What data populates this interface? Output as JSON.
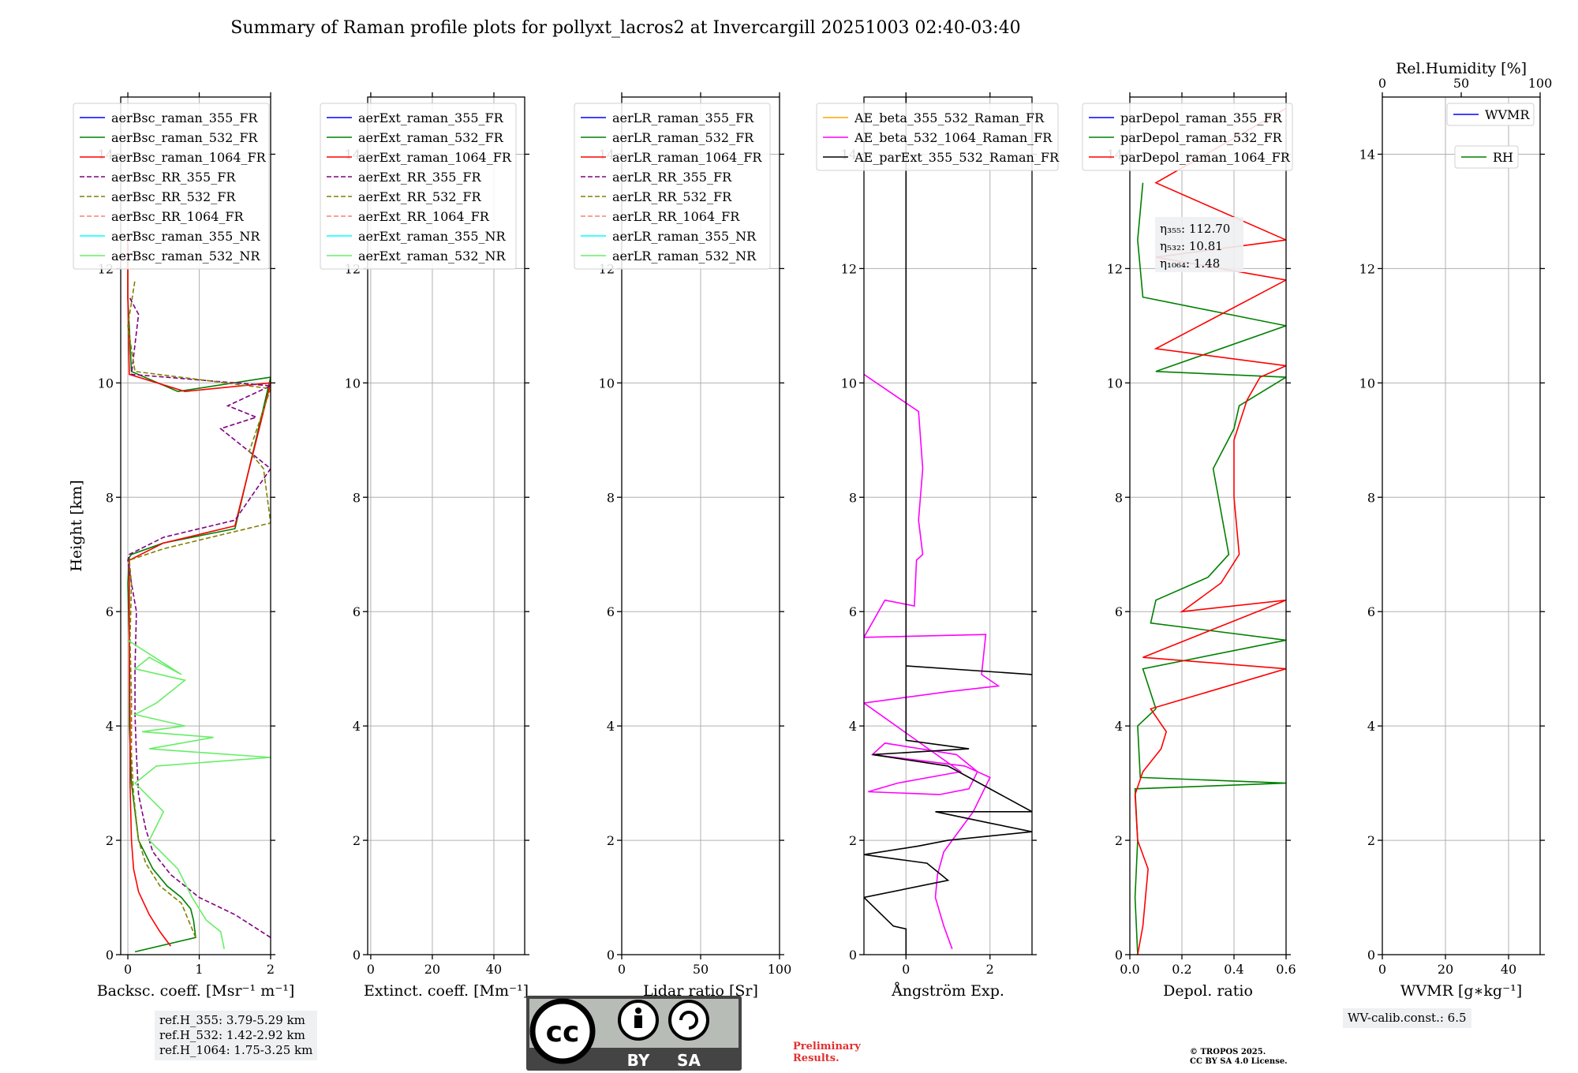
{
  "title": "Summary of Raman profile plots for pollyxt_lacros2 at Invercargill 20251003 02:40-03:40",
  "colors": {
    "blue": "#0000ff",
    "green": "#008000",
    "red": "#ff0000",
    "purple": "#800080",
    "olive": "#808000",
    "salmon": "#fa8072",
    "cyan": "#00ffff",
    "lightgreen": "#66ee66",
    "orange": "#ffa500",
    "magenta": "#ff00ff",
    "black": "#000000"
  },
  "footer": {
    "ref_lines": [
      "ref.H_355: 3.79-5.29 km",
      "ref.H_532: 1.42-2.92 km",
      "ref.H_1064: 1.75-3.25 km"
    ],
    "license_by": "BY",
    "license_sa": "SA",
    "license_cc": "cc",
    "preliminary": [
      "Preliminary",
      "Results."
    ],
    "copyright": [
      "© TROPOS 2025.",
      "CC BY SA 4.0 License."
    ],
    "wv_calib": "WV-calib.const.: 6.5"
  },
  "chart_data": [
    {
      "type": "line",
      "id": "backscatter",
      "xlabel": "Backsc. coeff. [Msr⁻¹ m⁻¹]",
      "ylabel": "Height [km]",
      "xlim": [
        -0.1,
        2.0
      ],
      "ylim": [
        0,
        15
      ],
      "xticks": [
        0,
        1,
        2
      ],
      "yticks": [
        0,
        2,
        4,
        6,
        8,
        10,
        12,
        14
      ],
      "legend": "top-left",
      "series": [
        {
          "name": "aerBsc_raman_355_FR",
          "color": "blue",
          "dash": false,
          "x": [],
          "y": []
        },
        {
          "name": "aerBsc_raman_532_FR",
          "color": "green",
          "dash": false,
          "x": [
            0.1,
            0.95,
            0.92,
            0.88,
            0.75,
            0.55,
            0.35,
            0.15,
            0.05,
            0.02,
            0.02,
            0.0,
            0.02,
            0.05,
            0.5,
            1.5,
            2.0,
            0.7,
            0.05,
            0.0,
            0.0
          ],
          "y": [
            0.05,
            0.3,
            0.6,
            0.8,
            1.0,
            1.2,
            1.5,
            2.0,
            3.0,
            4.0,
            5.5,
            6.5,
            6.95,
            7.0,
            7.2,
            7.45,
            10.1,
            9.85,
            10.2,
            11.5,
            12.5
          ]
        },
        {
          "name": "aerBsc_raman_1064_FR",
          "color": "red",
          "dash": false,
          "x": [
            0.6,
            0.45,
            0.3,
            0.15,
            0.08,
            0.05,
            0.03,
            0.03,
            0.02,
            0.02,
            0.5,
            1.5,
            2.0,
            0.8,
            0.02,
            0.0,
            0.0
          ],
          "y": [
            0.15,
            0.4,
            0.7,
            1.1,
            1.5,
            2.0,
            3.0,
            4.0,
            5.5,
            6.9,
            7.2,
            7.5,
            10.0,
            9.85,
            10.15,
            11.5,
            12.5
          ]
        },
        {
          "name": "aerBsc_RR_355_FR",
          "color": "purple",
          "dash": true,
          "x": [
            2.0,
            1.5,
            1.0,
            0.6,
            0.35,
            0.25,
            0.15,
            0.12,
            0.1,
            0.1,
            0.12,
            0.05,
            0.0,
            0.02,
            0.5,
            1.5,
            2.0,
            1.3,
            1.8,
            1.4,
            2.0,
            0.05,
            0.15,
            0.02
          ],
          "y": [
            0.3,
            0.7,
            1.0,
            1.4,
            1.8,
            2.2,
            2.8,
            3.5,
            4.2,
            5.0,
            6.0,
            6.5,
            6.9,
            7.0,
            7.3,
            7.6,
            8.5,
            9.2,
            9.4,
            9.6,
            9.95,
            10.15,
            11.2,
            11.5
          ],
          "ylim_clip": true
        },
        {
          "name": "aerBsc_RR_532_FR",
          "color": "olive",
          "dash": true,
          "x": [
            0.95,
            0.75,
            0.45,
            0.25,
            0.15,
            0.08,
            0.05,
            0.05,
            0.03,
            0.05,
            0.02,
            0.5,
            1.5,
            2.0,
            1.9,
            1.7,
            2.0,
            0.1,
            0.0,
            0.1
          ],
          "y": [
            0.3,
            0.9,
            1.2,
            1.6,
            2.0,
            2.8,
            3.5,
            4.5,
            5.5,
            6.5,
            6.9,
            7.1,
            7.4,
            7.55,
            8.5,
            8.8,
            9.9,
            10.2,
            11.0,
            11.8
          ]
        },
        {
          "name": "aerBsc_RR_1064_FR",
          "color": "salmon",
          "dash": true,
          "x": [],
          "y": []
        },
        {
          "name": "aerBsc_raman_355_NR",
          "color": "cyan",
          "dash": false,
          "x": [],
          "y": []
        },
        {
          "name": "aerBsc_raman_532_NR",
          "color": "lightgreen",
          "dash": false,
          "x": [
            1.35,
            1.3,
            1.1,
            0.9,
            0.7,
            0.3,
            0.5,
            0.1,
            0.4,
            2.0,
            0.3,
            1.2,
            0.2,
            0.8,
            0.1,
            0.4,
            0.8,
            0.1,
            0.3,
            0.75,
            0.0
          ],
          "y": [
            0.1,
            0.4,
            0.6,
            1.0,
            1.5,
            2.0,
            2.5,
            3.0,
            3.3,
            3.45,
            3.6,
            3.8,
            3.9,
            4.0,
            4.2,
            4.4,
            4.8,
            5.0,
            5.2,
            4.9,
            5.5
          ]
        }
      ]
    },
    {
      "type": "line",
      "id": "extinction",
      "xlabel": "Extinct. coeff. [Mm⁻¹]",
      "xlim": [
        -1,
        50
      ],
      "ylim": [
        0,
        15
      ],
      "xticks": [
        0,
        20,
        40
      ],
      "yticks": [
        0,
        2,
        4,
        6,
        8,
        10,
        12,
        14
      ],
      "legend": "top-left",
      "series": [
        {
          "name": "aerExt_raman_355_FR",
          "color": "blue",
          "dash": false,
          "x": [],
          "y": []
        },
        {
          "name": "aerExt_raman_532_FR",
          "color": "green",
          "dash": false,
          "x": [],
          "y": []
        },
        {
          "name": "aerExt_raman_1064_FR",
          "color": "red",
          "dash": false,
          "x": [],
          "y": []
        },
        {
          "name": "aerExt_RR_355_FR",
          "color": "purple",
          "dash": true,
          "x": [],
          "y": []
        },
        {
          "name": "aerExt_RR_532_FR",
          "color": "olive",
          "dash": true,
          "x": [],
          "y": []
        },
        {
          "name": "aerExt_RR_1064_FR",
          "color": "salmon",
          "dash": true,
          "x": [],
          "y": []
        },
        {
          "name": "aerExt_raman_355_NR",
          "color": "cyan",
          "dash": false,
          "x": [],
          "y": []
        },
        {
          "name": "aerExt_raman_532_NR",
          "color": "lightgreen",
          "dash": false,
          "x": [],
          "y": []
        }
      ]
    },
    {
      "type": "line",
      "id": "lidar_ratio",
      "xlabel": "Lidar ratio [Sr]",
      "xlim": [
        0,
        100
      ],
      "ylim": [
        0,
        15
      ],
      "xticks": [
        0,
        50,
        100
      ],
      "yticks": [
        0,
        2,
        4,
        6,
        8,
        10,
        12,
        14
      ],
      "legend": "top-left",
      "series": [
        {
          "name": "aerLR_raman_355_FR",
          "color": "blue",
          "dash": false,
          "x": [],
          "y": []
        },
        {
          "name": "aerLR_raman_532_FR",
          "color": "green",
          "dash": false,
          "x": [],
          "y": []
        },
        {
          "name": "aerLR_raman_1064_FR",
          "color": "red",
          "dash": false,
          "x": [],
          "y": []
        },
        {
          "name": "aerLR_RR_355_FR",
          "color": "purple",
          "dash": true,
          "x": [],
          "y": []
        },
        {
          "name": "aerLR_RR_532_FR",
          "color": "olive",
          "dash": true,
          "x": [],
          "y": []
        },
        {
          "name": "aerLR_RR_1064_FR",
          "color": "salmon",
          "dash": true,
          "x": [],
          "y": []
        },
        {
          "name": "aerLR_raman_355_NR",
          "color": "cyan",
          "dash": false,
          "x": [],
          "y": []
        },
        {
          "name": "aerLR_raman_532_NR",
          "color": "lightgreen",
          "dash": false,
          "x": [],
          "y": []
        }
      ]
    },
    {
      "type": "line",
      "id": "angstrom",
      "xlabel": "Ångström Exp.",
      "xlim": [
        -1,
        3
      ],
      "ylim": [
        0,
        15
      ],
      "xticks": [
        0,
        2
      ],
      "yticks": [
        0,
        2,
        4,
        6,
        8,
        10,
        12,
        14
      ],
      "legend": "top-left",
      "series": [
        {
          "name": "AE_beta_355_532_Raman_FR",
          "color": "orange",
          "dash": false,
          "x": [],
          "y": []
        },
        {
          "name": "AE_beta_532_1064_Raman_FR",
          "color": "magenta",
          "dash": false,
          "x": [
            1.1,
            0.9,
            0.7,
            0.75,
            0.9,
            1.1,
            1.3,
            1.6,
            2.0,
            1.4,
            -0.8,
            -0.5,
            1.2,
            1.7,
            1.5,
            0.8,
            -0.9,
            -0.2,
            1.3,
            -1.0,
            1.0,
            2.2,
            1.8,
            1.9,
            -1.0,
            -0.5,
            0.2,
            0.25,
            0.4,
            0.3,
            0.4,
            0.3,
            -1.0
          ],
          "y": [
            0.1,
            0.5,
            1.0,
            1.4,
            1.8,
            2.0,
            2.2,
            2.5,
            3.1,
            3.3,
            3.5,
            3.7,
            3.5,
            3.2,
            2.9,
            2.8,
            2.85,
            3.0,
            3.2,
            4.4,
            4.6,
            4.7,
            4.9,
            5.6,
            5.55,
            6.2,
            6.1,
            6.9,
            7.0,
            7.6,
            8.5,
            9.5,
            10.15
          ]
        },
        {
          "name": "AE_parExt_355_532_Raman_FR",
          "color": "black",
          "dash": false,
          "x": [
            0.0,
            0.0,
            -0.3,
            -1.0,
            1.0,
            0.5,
            -1.0,
            0.3,
            1.0,
            3.0,
            2.0,
            0.7,
            3.0,
            1.0,
            -0.8,
            1.5,
            0.0,
            0.0,
            3.0,
            0.0,
            0.0
          ],
          "y": [
            0.0,
            0.45,
            0.5,
            1.0,
            1.3,
            1.6,
            1.75,
            1.9,
            2.0,
            2.15,
            2.3,
            2.5,
            2.5,
            3.3,
            3.5,
            3.6,
            3.75,
            5.05,
            4.9,
            5.05,
            15.0
          ]
        }
      ]
    },
    {
      "type": "line",
      "id": "depolarization",
      "xlabel": "Depol. ratio",
      "xlim": [
        0,
        0.6
      ],
      "ylim": [
        0,
        15
      ],
      "xticks": [
        0.0,
        0.2,
        0.4,
        0.6
      ],
      "xticklabels": [
        "0.0",
        "0.2",
        "0.4",
        "0.6"
      ],
      "yticks": [
        0,
        2,
        4,
        6,
        8,
        10,
        12,
        14
      ],
      "legend": "top-left",
      "annotation": [
        "η₃₅₅: 112.70",
        "η₅₃₂: 10.81",
        "η₁₀₆₄: 1.48"
      ],
      "series": [
        {
          "name": "parDepol_raman_355_FR",
          "color": "blue",
          "dash": false,
          "x": [],
          "y": []
        },
        {
          "name": "parDepol_raman_532_FR",
          "color": "green",
          "dash": false,
          "x": [
            0.03,
            0.02,
            0.03,
            0.02,
            0.6,
            0.04,
            0.03,
            0.1,
            0.05,
            0.6,
            0.08,
            0.1,
            0.3,
            0.38,
            0.32,
            0.4,
            0.42,
            0.6,
            0.1,
            0.6,
            0.05,
            0.03,
            0.05
          ],
          "y": [
            0.0,
            1.0,
            2.0,
            2.9,
            3.0,
            3.1,
            4.0,
            4.3,
            5.0,
            5.5,
            5.8,
            6.2,
            6.6,
            7.0,
            8.5,
            9.2,
            9.6,
            10.1,
            10.2,
            11.0,
            11.5,
            12.5,
            13.5
          ]
        },
        {
          "name": "parDepol_raman_1064_FR",
          "color": "red",
          "dash": false,
          "x": [
            0.03,
            0.05,
            0.07,
            0.03,
            0.02,
            0.05,
            0.12,
            0.14,
            0.08,
            0.6,
            0.05,
            0.6,
            0.2,
            0.35,
            0.42,
            0.4,
            0.4,
            0.45,
            0.5,
            0.6,
            0.1,
            0.6,
            0.1,
            0.6,
            0.1,
            0.6
          ],
          "y": [
            0.0,
            0.5,
            1.5,
            2.0,
            2.8,
            3.2,
            3.6,
            3.9,
            4.3,
            5.0,
            5.2,
            6.2,
            6.0,
            6.5,
            7.0,
            8.0,
            9.0,
            9.7,
            10.1,
            10.3,
            10.6,
            11.8,
            12.2,
            12.5,
            13.5,
            14.8
          ]
        }
      ]
    },
    {
      "type": "line",
      "id": "water_vapor",
      "xlabel": "WVMR [g∗kg⁻¹]",
      "top_xlabel": "Rel.Humidity [%]",
      "xlim": [
        0,
        50
      ],
      "top_xlim": [
        0,
        100
      ],
      "ylim": [
        0,
        15
      ],
      "xticks": [
        0,
        20,
        40
      ],
      "top_xticks": [
        0,
        50,
        100
      ],
      "yticks": [
        0,
        2,
        4,
        6,
        8,
        10,
        12,
        14
      ],
      "legend": "top-right",
      "series": [
        {
          "name": "WVMR",
          "color": "blue",
          "dash": false,
          "x": [],
          "y": []
        },
        {
          "name": "RH",
          "color": "green",
          "dash": false,
          "x": [],
          "y": []
        }
      ]
    }
  ]
}
